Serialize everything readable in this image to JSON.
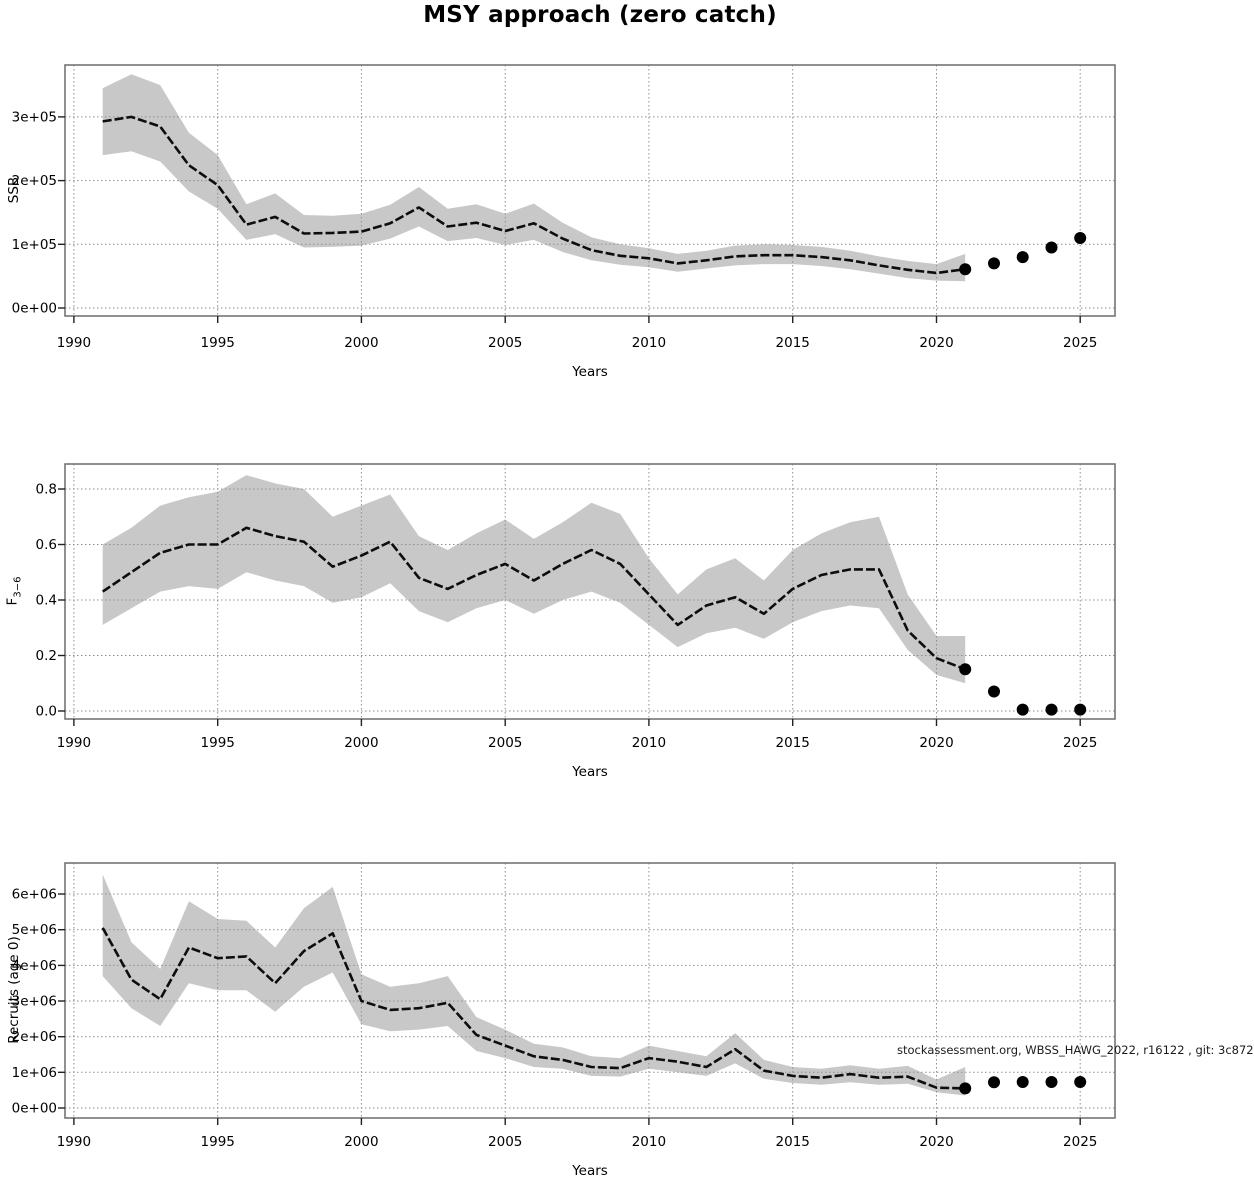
{
  "title": "MSY approach (zero catch)",
  "colors": {
    "band": "#c8c8c8",
    "line": "#0d0d0d",
    "grid": "#8f8f8f",
    "box": "#757575",
    "tick": "#222222",
    "dot": "#000000",
    "text": "#000000"
  },
  "chart_data": [
    {
      "type": "line",
      "name": "ssb",
      "ylabel": {
        "text": "SSB",
        "sub": ""
      },
      "xlabel": "Years",
      "xlim": [
        1989.69,
        2026.21
      ],
      "ylim": [
        -12500,
        381500
      ],
      "grid": true,
      "xticks": {
        "values": [
          1990,
          1995,
          2000,
          2005,
          2010,
          2015,
          2020,
          2025
        ],
        "labels": [
          "1990",
          "1995",
          "2000",
          "2005",
          "2010",
          "2015",
          "2020",
          "2025"
        ]
      },
      "yticks": {
        "values": [
          0,
          100000,
          200000,
          300000
        ],
        "labels": [
          "0e+00",
          "1e+05",
          "2e+05",
          "3e+05"
        ]
      },
      "x": [
        1991,
        1992,
        1993,
        1994,
        1995,
        1996,
        1997,
        1998,
        1999,
        2000,
        2001,
        2002,
        2003,
        2004,
        2005,
        2006,
        2007,
        2008,
        2009,
        2010,
        2011,
        2012,
        2013,
        2014,
        2015,
        2016,
        2017,
        2018,
        2019,
        2020,
        2021
      ],
      "mean": [
        293000,
        300000,
        285000,
        224000,
        193000,
        131000,
        143000,
        117000,
        118000,
        120000,
        133000,
        158000,
        128000,
        134000,
        121000,
        133000,
        109000,
        91000,
        82000,
        78000,
        70000,
        75000,
        81000,
        83000,
        83000,
        80000,
        75000,
        67000,
        60000,
        55000,
        61000
      ],
      "lo": [
        240000,
        246000,
        230000,
        183000,
        156000,
        107000,
        116000,
        95000,
        96000,
        98000,
        109000,
        128000,
        105000,
        110000,
        99000,
        107000,
        88000,
        75000,
        68000,
        64000,
        57000,
        62000,
        67000,
        69000,
        69000,
        66000,
        61000,
        54000,
        47000,
        43000,
        42000
      ],
      "hi": [
        345000,
        367000,
        350000,
        275000,
        240000,
        163000,
        180000,
        146000,
        145000,
        148000,
        162000,
        190000,
        156000,
        163000,
        148000,
        164000,
        134000,
        111000,
        100000,
        94000,
        85000,
        90000,
        98000,
        100000,
        99000,
        96000,
        90000,
        81000,
        74000,
        69000,
        85000
      ],
      "forecast": {
        "x": [
          2021,
          2022,
          2023,
          2024,
          2025
        ],
        "y": [
          61000,
          70000,
          80000,
          95000,
          110000
        ]
      }
    },
    {
      "type": "line",
      "name": "f",
      "ylabel": {
        "text": "F",
        "sub": "3−6"
      },
      "xlabel": "Years",
      "xlim": [
        1989.69,
        2026.21
      ],
      "ylim": [
        -0.029,
        0.89
      ],
      "grid": true,
      "xticks": {
        "values": [
          1990,
          1995,
          2000,
          2005,
          2010,
          2015,
          2020,
          2025
        ],
        "labels": [
          "1990",
          "1995",
          "2000",
          "2005",
          "2010",
          "2015",
          "2020",
          "2025"
        ]
      },
      "yticks": {
        "values": [
          0.0,
          0.2,
          0.4,
          0.6,
          0.8
        ],
        "labels": [
          "0.0",
          "0.2",
          "0.4",
          "0.6",
          "0.8"
        ]
      },
      "x": [
        1991,
        1992,
        1993,
        1994,
        1995,
        1996,
        1997,
        1998,
        1999,
        2000,
        2001,
        2002,
        2003,
        2004,
        2005,
        2006,
        2007,
        2008,
        2009,
        2010,
        2011,
        2012,
        2013,
        2014,
        2015,
        2016,
        2017,
        2018,
        2019,
        2020,
        2021
      ],
      "mean": [
        0.43,
        0.5,
        0.57,
        0.6,
        0.6,
        0.66,
        0.63,
        0.61,
        0.52,
        0.56,
        0.61,
        0.48,
        0.44,
        0.49,
        0.53,
        0.47,
        0.53,
        0.58,
        0.53,
        0.42,
        0.31,
        0.38,
        0.41,
        0.35,
        0.44,
        0.49,
        0.51,
        0.51,
        0.29,
        0.19,
        0.15
      ],
      "lo": [
        0.31,
        0.37,
        0.43,
        0.45,
        0.44,
        0.5,
        0.47,
        0.45,
        0.39,
        0.41,
        0.46,
        0.36,
        0.32,
        0.37,
        0.4,
        0.35,
        0.4,
        0.43,
        0.39,
        0.31,
        0.23,
        0.28,
        0.3,
        0.26,
        0.32,
        0.36,
        0.38,
        0.37,
        0.22,
        0.13,
        0.1
      ],
      "hi": [
        0.6,
        0.66,
        0.74,
        0.77,
        0.79,
        0.85,
        0.82,
        0.8,
        0.7,
        0.74,
        0.78,
        0.63,
        0.58,
        0.64,
        0.69,
        0.62,
        0.68,
        0.75,
        0.71,
        0.55,
        0.42,
        0.51,
        0.55,
        0.47,
        0.58,
        0.64,
        0.68,
        0.7,
        0.42,
        0.27,
        0.27
      ],
      "forecast": {
        "x": [
          2021,
          2022,
          2023,
          2024,
          2025
        ],
        "y": [
          0.15,
          0.07,
          0.005,
          0.005,
          0.005
        ]
      }
    },
    {
      "type": "line",
      "name": "recruits",
      "ylabel": {
        "text": "Recruits (age 0)",
        "sub": ""
      },
      "xlabel": "Years",
      "xlim": [
        1989.69,
        2026.21
      ],
      "ylim": [
        -280000,
        6870000
      ],
      "grid": true,
      "annotation": "stockassessment.org, WBSS_HAWG_2022, r16122 , git: 3c872",
      "xticks": {
        "values": [
          1990,
          1995,
          2000,
          2005,
          2010,
          2015,
          2020,
          2025
        ],
        "labels": [
          "1990",
          "1995",
          "2000",
          "2005",
          "2010",
          "2015",
          "2020",
          "2025"
        ]
      },
      "yticks": {
        "values": [
          0,
          1000000,
          2000000,
          3000000,
          4000000,
          5000000,
          6000000
        ],
        "labels": [
          "0e+00",
          "1e+06",
          "2e+06",
          "3e+06",
          "4e+06",
          "5e+06",
          "6e+06"
        ]
      },
      "x": [
        1991,
        1992,
        1993,
        1994,
        1995,
        1996,
        1997,
        1998,
        1999,
        2000,
        2001,
        2002,
        2003,
        2004,
        2005,
        2006,
        2007,
        2008,
        2009,
        2010,
        2011,
        2012,
        2013,
        2014,
        2015,
        2016,
        2017,
        2018,
        2019,
        2020,
        2021
      ],
      "mean": [
        5050000,
        3600000,
        3050000,
        4500000,
        4200000,
        4250000,
        3500000,
        4400000,
        4900000,
        3000000,
        2750000,
        2800000,
        2950000,
        2050000,
        1750000,
        1450000,
        1350000,
        1150000,
        1120000,
        1400000,
        1300000,
        1150000,
        1650000,
        1050000,
        900000,
        850000,
        950000,
        850000,
        880000,
        570000,
        550000
      ],
      "lo": [
        3700000,
        2800000,
        2300000,
        3500000,
        3300000,
        3300000,
        2700000,
        3400000,
        3800000,
        2350000,
        2150000,
        2200000,
        2300000,
        1600000,
        1400000,
        1150000,
        1100000,
        900000,
        880000,
        1100000,
        1000000,
        900000,
        1250000,
        820000,
        700000,
        650000,
        720000,
        650000,
        680000,
        440000,
        350000
      ],
      "hi": [
        6550000,
        4650000,
        3900000,
        5800000,
        5300000,
        5250000,
        4500000,
        5600000,
        6200000,
        3750000,
        3400000,
        3500000,
        3700000,
        2550000,
        2200000,
        1800000,
        1700000,
        1450000,
        1400000,
        1750000,
        1600000,
        1450000,
        2100000,
        1350000,
        1150000,
        1100000,
        1200000,
        1100000,
        1180000,
        800000,
        1150000
      ],
      "forecast": {
        "x": [
          2021,
          2022,
          2023,
          2024,
          2025
        ],
        "y": [
          550000,
          720000,
          730000,
          730000,
          730000
        ]
      }
    }
  ]
}
